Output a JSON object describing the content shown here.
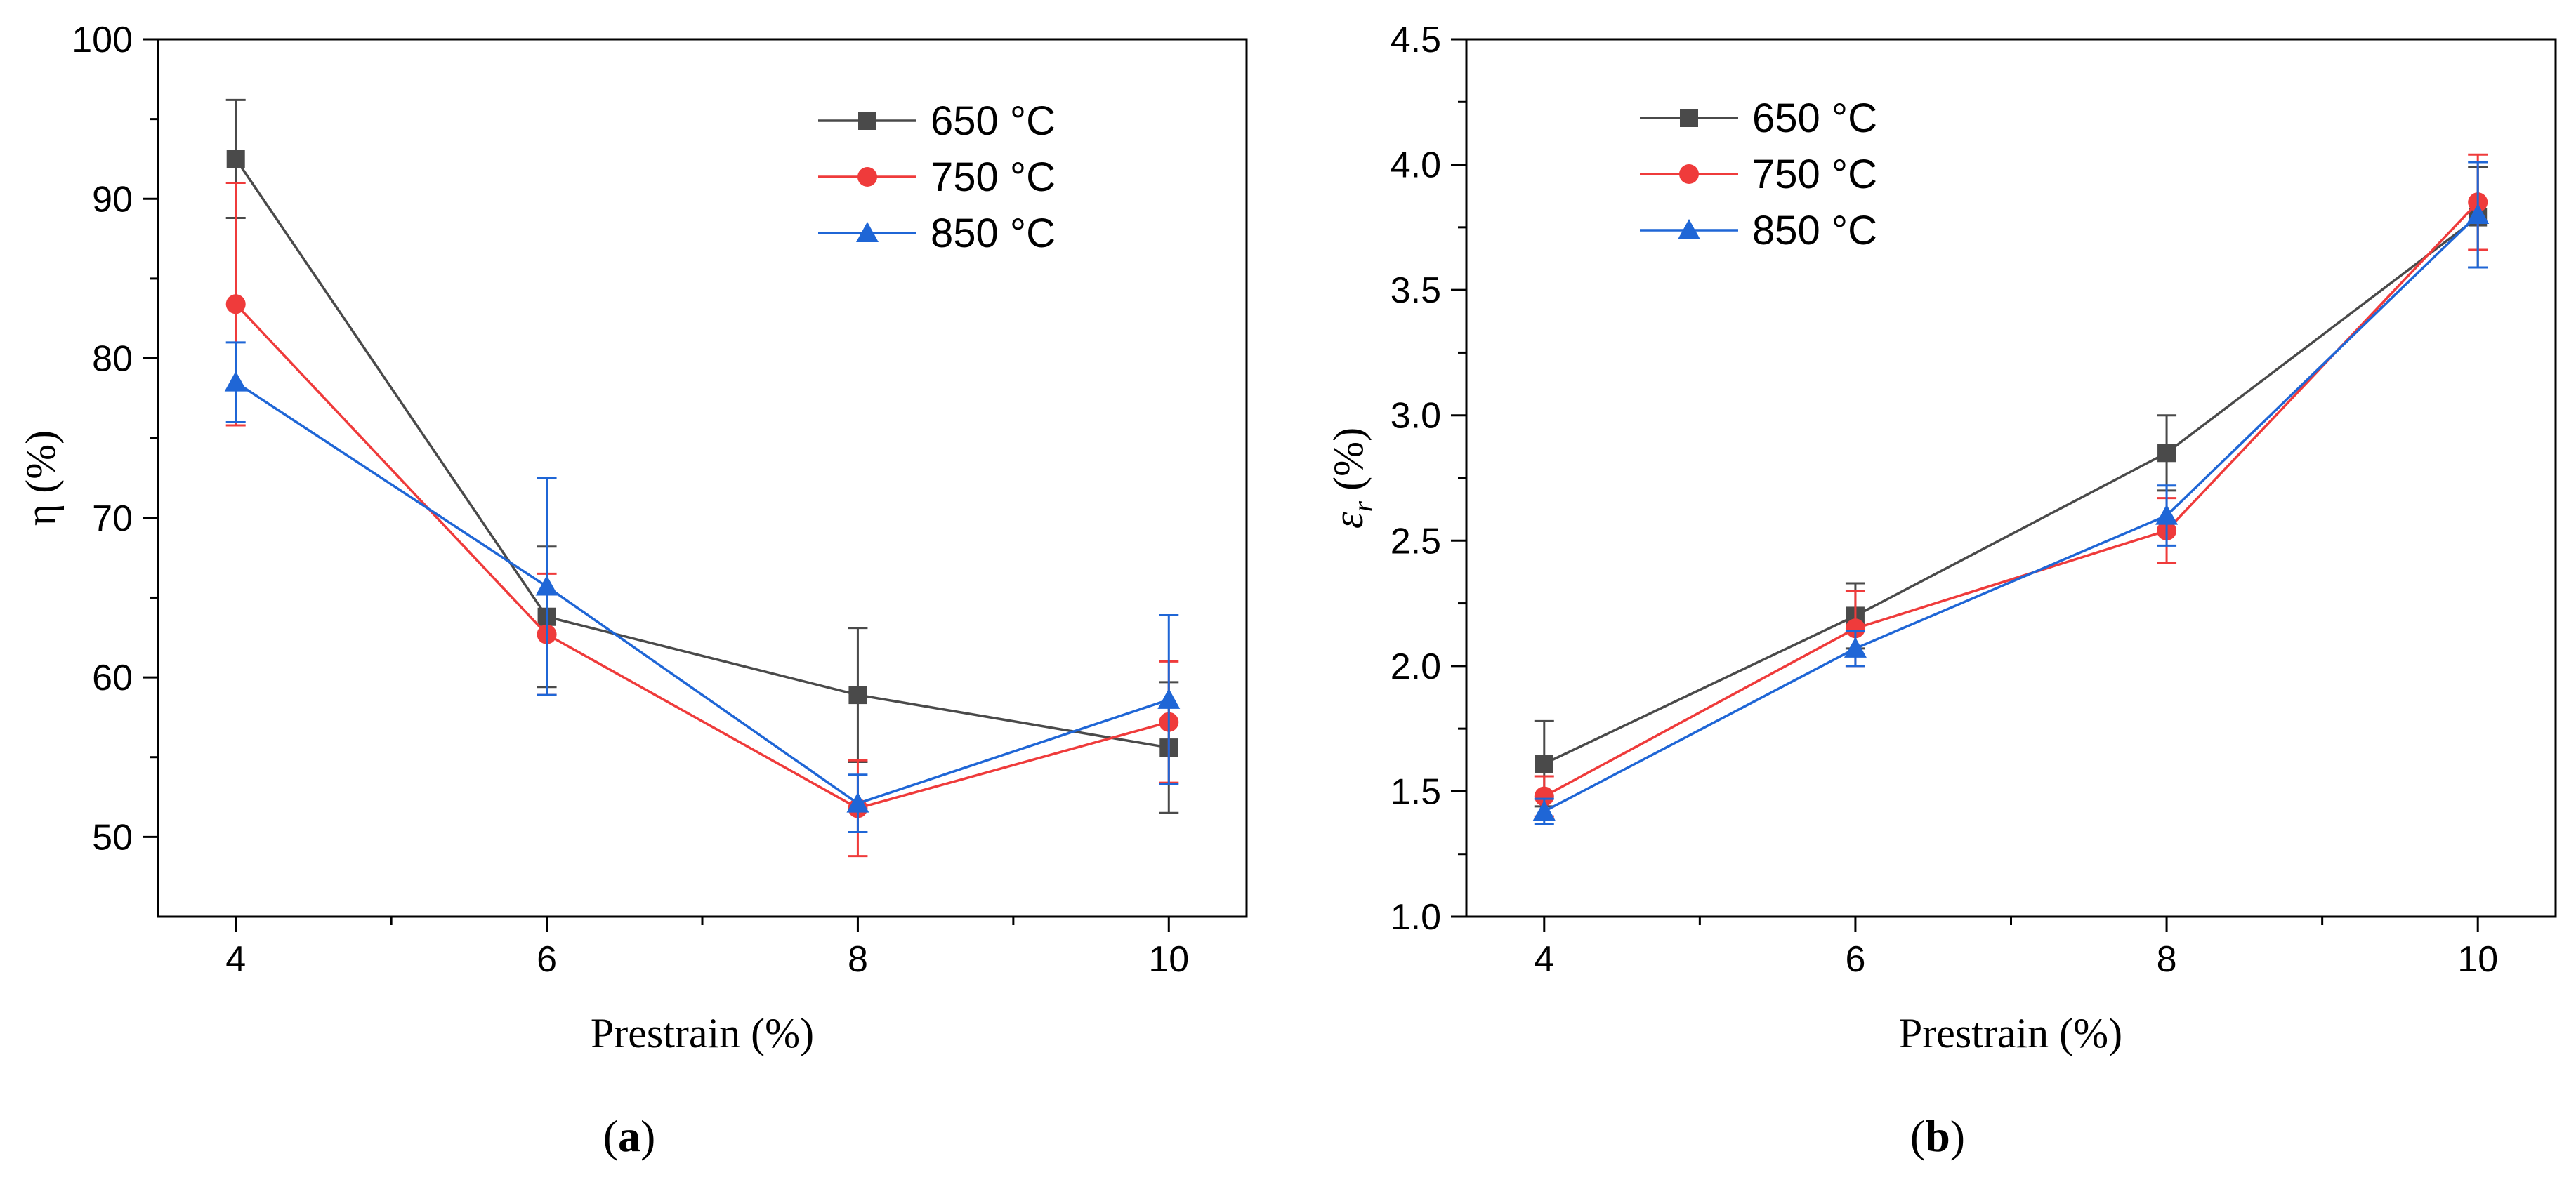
{
  "chart_data": [
    {
      "type": "line",
      "panel": "a",
      "caption": {
        "open": "(",
        "letter": "a",
        "close": ")"
      },
      "xlabel": "Prestrain (%)",
      "ylabel": "η (%)",
      "x": [
        4,
        6,
        8,
        10
      ],
      "xticks": [
        4,
        6,
        8,
        10
      ],
      "xlim": [
        3.5,
        10.5
      ],
      "ylim": [
        45,
        100
      ],
      "yticks": [
        50,
        60,
        70,
        80,
        90,
        100
      ],
      "ytick_labels": [
        "50",
        "60",
        "70",
        "80",
        "90",
        "100"
      ],
      "legend_position": "top-right",
      "series": [
        {
          "name": "650 °C",
          "color": "#4a4a4a",
          "marker": "square",
          "values": [
            92.5,
            63.8,
            58.9,
            55.6
          ],
          "errors": [
            3.7,
            4.4,
            4.2,
            4.1
          ]
        },
        {
          "name": "750 °C",
          "color": "#ef3b3b",
          "marker": "circle",
          "values": [
            83.4,
            62.7,
            51.8,
            57.2
          ],
          "errors": [
            7.6,
            3.8,
            3.0,
            3.8
          ]
        },
        {
          "name": "850 °C",
          "color": "#1f66d6",
          "marker": "triangle",
          "values": [
            78.5,
            65.7,
            52.1,
            58.6
          ],
          "errors": [
            2.5,
            6.8,
            1.8,
            5.3
          ]
        }
      ]
    },
    {
      "type": "line",
      "panel": "b",
      "caption": {
        "open": "(",
        "letter": "b",
        "close": ")"
      },
      "xlabel": "Prestrain (%)",
      "ylabel": {
        "symbol": "ε",
        "subscript": "r",
        "unit": " (%)"
      },
      "x": [
        4,
        6,
        8,
        10
      ],
      "xticks": [
        4,
        6,
        8,
        10
      ],
      "xlim": [
        3.5,
        10.5
      ],
      "ylim": [
        1.0,
        4.5
      ],
      "yticks": [
        1.0,
        1.5,
        2.0,
        2.5,
        3.0,
        3.5,
        4.0,
        4.5
      ],
      "ytick_labels": [
        "1.0",
        "1.5",
        "2.0",
        "2.5",
        "3.0",
        "3.5",
        "4.0",
        "4.5"
      ],
      "legend_position": "top-left",
      "series": [
        {
          "name": "650 °C",
          "color": "#4a4a4a",
          "marker": "square",
          "values": [
            1.61,
            2.2,
            2.85,
            3.79
          ],
          "errors": [
            0.17,
            0.13,
            0.15,
            0.2
          ]
        },
        {
          "name": "750 °C",
          "color": "#ef3b3b",
          "marker": "circle",
          "values": [
            1.48,
            2.15,
            2.54,
            3.85
          ],
          "errors": [
            0.08,
            0.15,
            0.13,
            0.19
          ]
        },
        {
          "name": "850 °C",
          "color": "#1f66d6",
          "marker": "triangle",
          "values": [
            1.42,
            2.07,
            2.6,
            3.8
          ],
          "errors": [
            0.05,
            0.07,
            0.12,
            0.21
          ]
        }
      ]
    }
  ]
}
